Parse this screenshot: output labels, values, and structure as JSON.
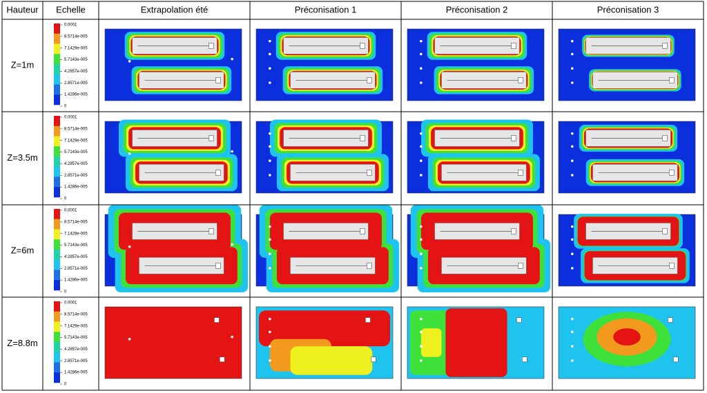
{
  "table": {
    "header": [
      "Hauteur",
      "Echelle",
      "Extrapolation été",
      "Préconisation 1",
      "Préconisation 2",
      "Préconisation 3"
    ],
    "rows": [
      {
        "label": "Z=1m",
        "scale": [
          "0.0001",
          "8.5714e-005",
          "7.1429e-005",
          "5.7143e-005",
          "4.2857e-005",
          "2.8571e-005",
          "1.4286e-005",
          "0"
        ]
      },
      {
        "label": "Z=3.5m",
        "scale": [
          "0.0001",
          "8.5714e-005",
          "7.1429e-005",
          "5.7143e-005",
          "4.2857e-005",
          "2.8571e-005",
          "1.4286e-005",
          "0"
        ]
      },
      {
        "label": "Z=6m",
        "scale": [
          "0.0001",
          "8.5714e-005",
          "7.1429e-005",
          "5.7143e-005",
          "4.2857e-005",
          "2.8571e-005",
          "1.4286e-005",
          "0"
        ]
      },
      {
        "label": "Z=8.8m",
        "scale": [
          "0.0001",
          "8.5714e-005",
          "7.1429e-005",
          "5.7143e-005",
          "4.2857e-005",
          "2.8571e-005",
          "1.4286e-005",
          "0"
        ]
      }
    ]
  }
}
